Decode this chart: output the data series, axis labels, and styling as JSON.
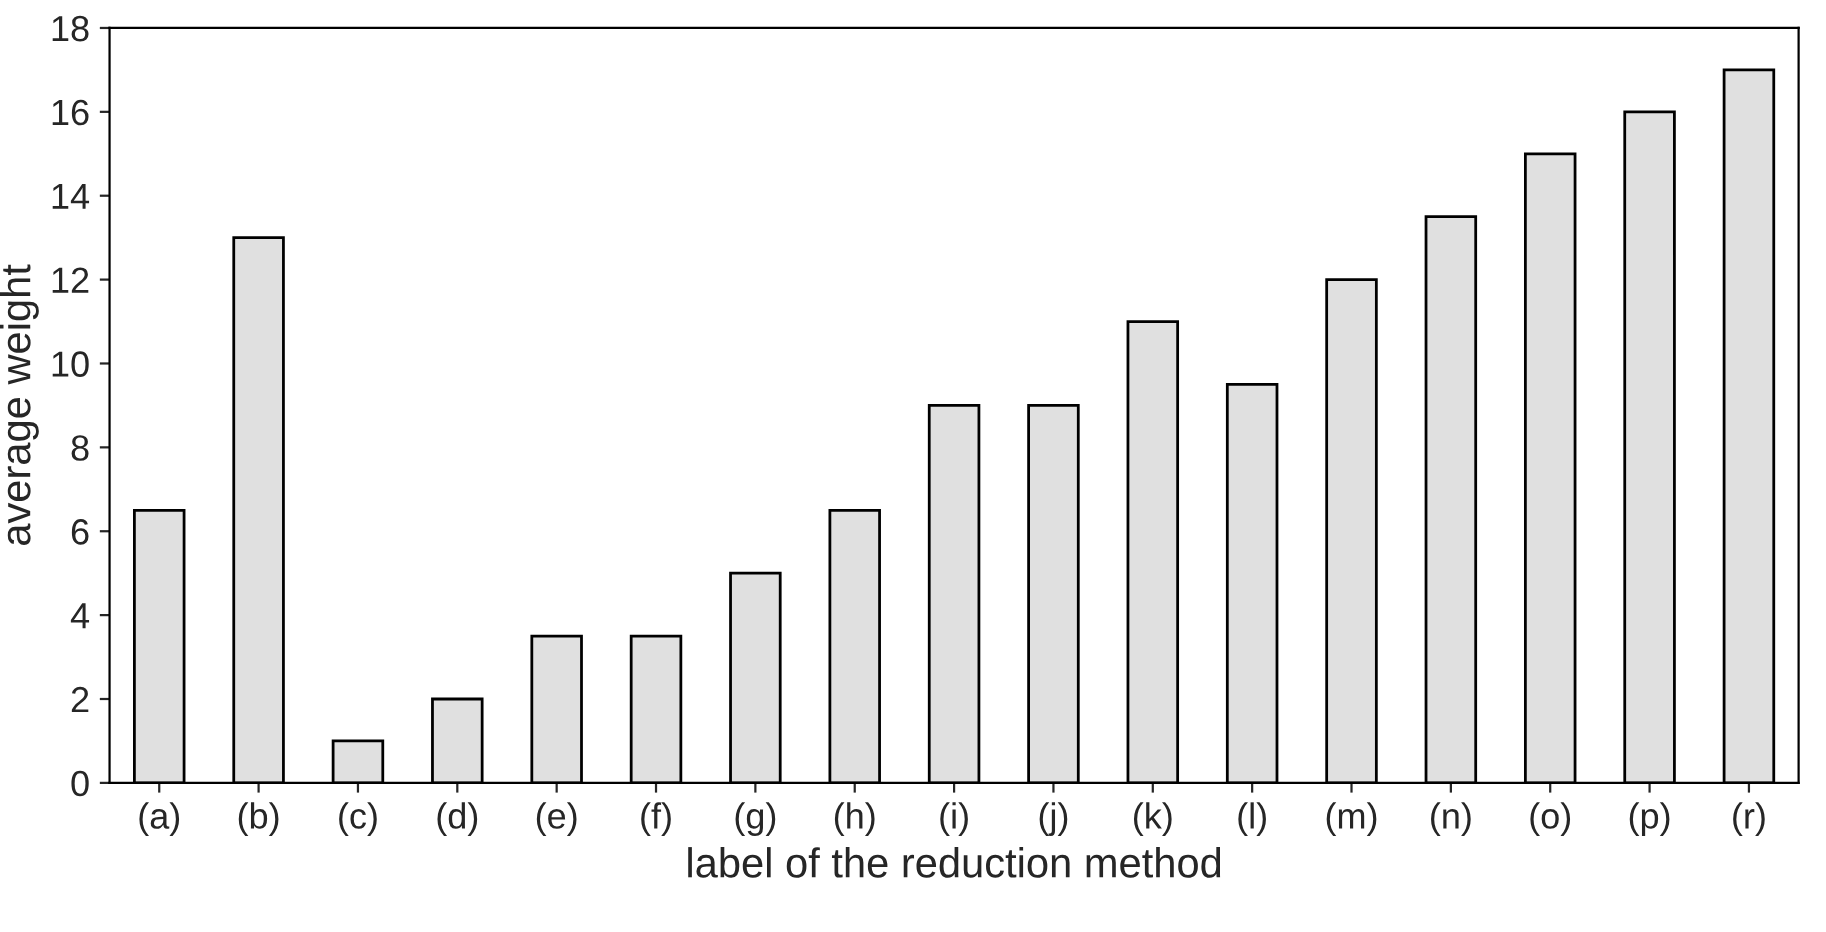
{
  "chart_data": {
    "type": "bar",
    "xlabel": "label of the reduction method",
    "ylabel": "average weight",
    "categories": [
      "(a)",
      "(b)",
      "(c)",
      "(d)",
      "(e)",
      "(f)",
      "(g)",
      "(h)",
      "(i)",
      "(j)",
      "(k)",
      "(l)",
      "(m)",
      "(n)",
      "(o)",
      "(p)",
      "(r)"
    ],
    "values": [
      6.5,
      13,
      1,
      2,
      3.5,
      3.5,
      5,
      6.5,
      9,
      9,
      11,
      9.5,
      12,
      13.5,
      15,
      16,
      17
    ],
    "color": "#e0e0e0",
    "ylim": [
      0,
      18
    ],
    "yticks": [
      0,
      2,
      4,
      6,
      8,
      10,
      12,
      14,
      16,
      18
    ],
    "grid": false
  }
}
